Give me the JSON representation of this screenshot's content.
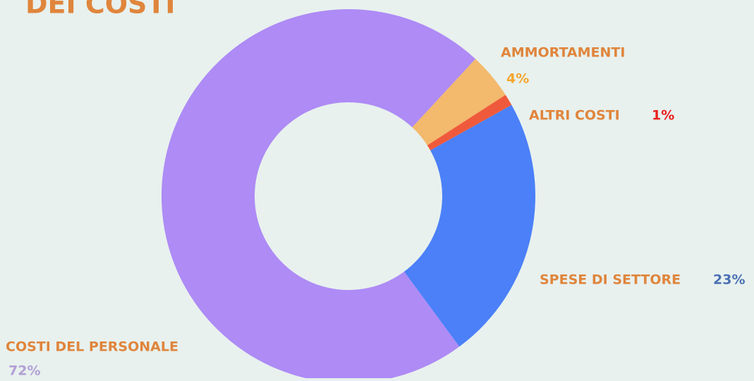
{
  "chart_data": {
    "type": "donut",
    "title": "DEI COSTI",
    "categories": [
      "AMMORTAMENTI",
      "ALTRI COSTI",
      "SPESE DI SETTORE",
      "COSTI DEL PERSONALE"
    ],
    "values": [
      4,
      1,
      23,
      72
    ],
    "value_labels": [
      "4%",
      "1%",
      "23%",
      "72%"
    ],
    "colors": [
      "#f3b96c",
      "#f05a3c",
      "#4b80f8",
      "#ae8bf5"
    ],
    "label_colors": [
      "#f4a52d",
      "#e8201c",
      "#4a70b4",
      "#b29fd6"
    ],
    "name_color": "#e0853c"
  }
}
